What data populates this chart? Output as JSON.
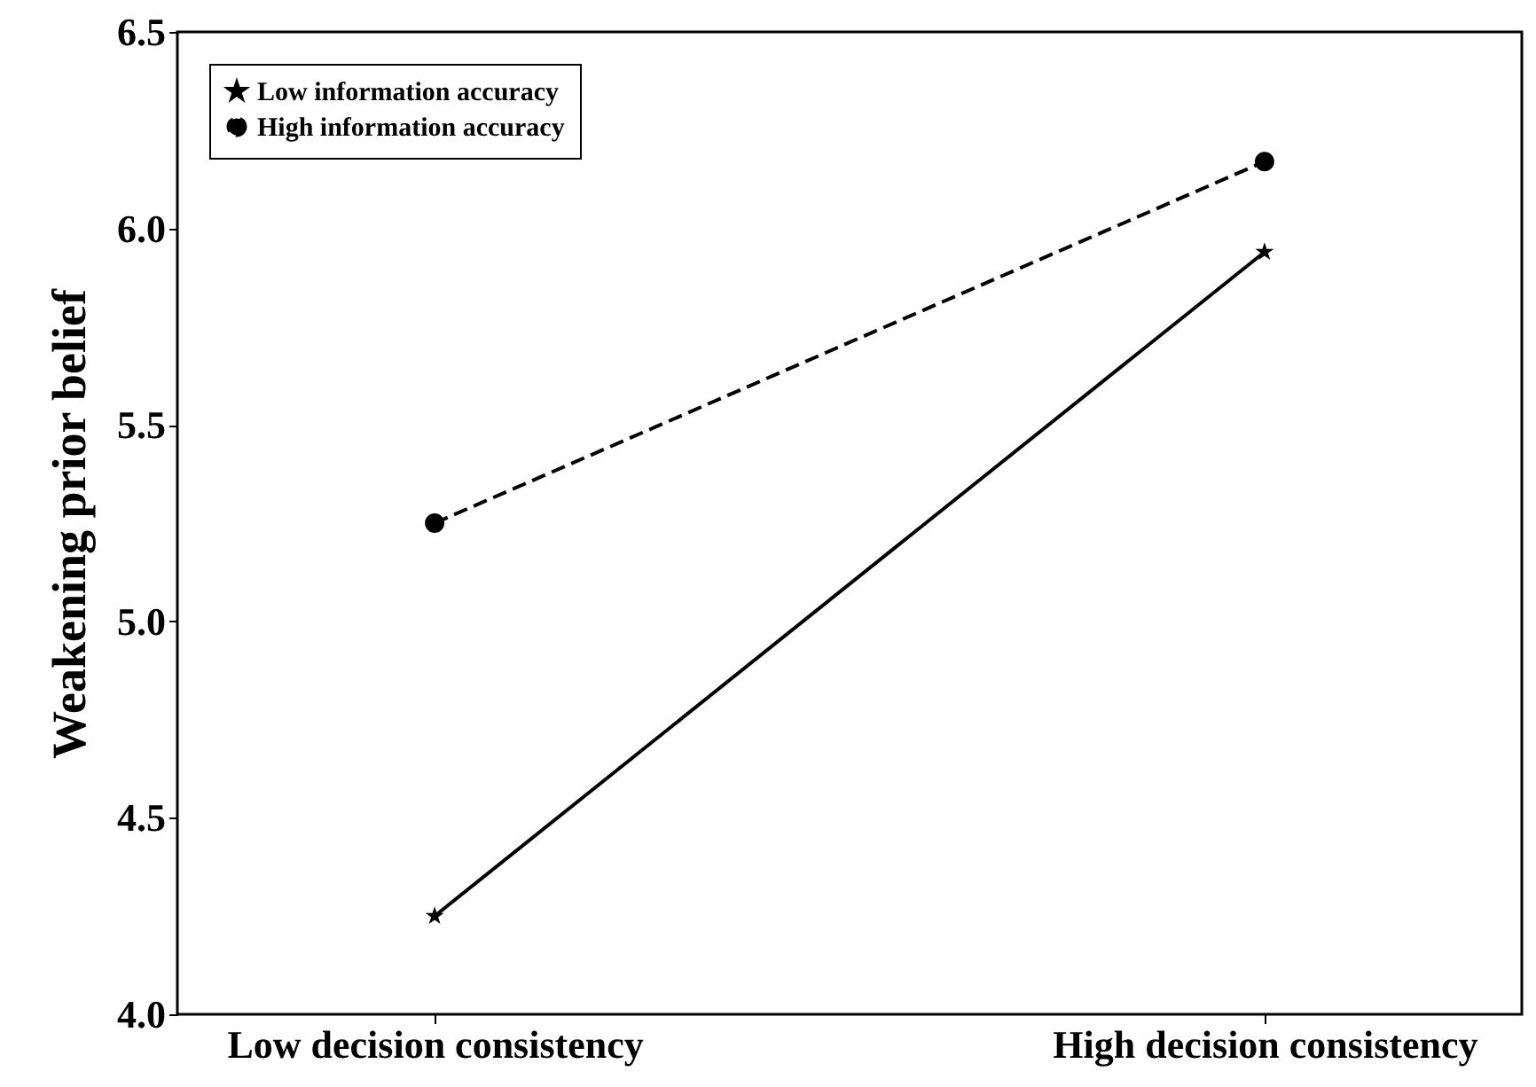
{
  "chart_data": {
    "type": "line",
    "ylabel": "Weakening prior belief",
    "categories": [
      "Low decision consistency",
      "High decision consistency"
    ],
    "series": [
      {
        "name": "Low information accuracy",
        "color": "#000000",
        "values": [
          4.25,
          5.94
        ],
        "marker": "star",
        "line_style": "solid"
      },
      {
        "name": "High information accuracy",
        "color": "#000000",
        "values": [
          5.25,
          6.17
        ],
        "marker": "circle",
        "line_style": "dashed"
      }
    ],
    "ylim": [
      4.0,
      6.5
    ],
    "yticks": [
      {
        "value": 4.0,
        "label": "4.0"
      },
      {
        "value": 4.5,
        "label": "4.5"
      },
      {
        "value": 5.0,
        "label": "5.0"
      },
      {
        "value": 5.5,
        "label": "5.5"
      },
      {
        "value": 6.0,
        "label": "6.0"
      },
      {
        "value": 6.5,
        "label": "6.5"
      }
    ],
    "grid": false,
    "legend": "top left"
  }
}
